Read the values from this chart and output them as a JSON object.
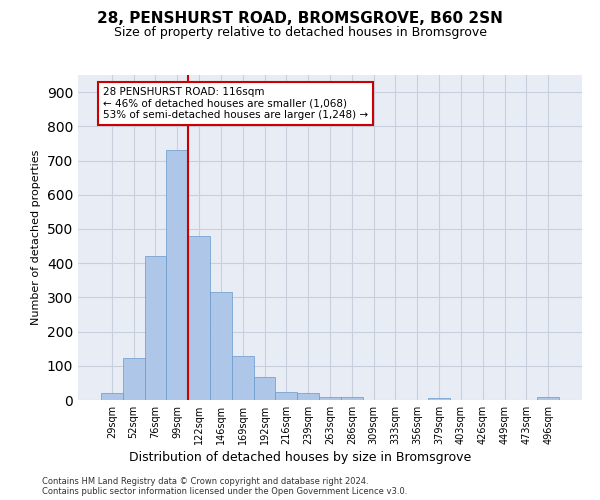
{
  "title": "28, PENSHURST ROAD, BROMSGROVE, B60 2SN",
  "subtitle": "Size of property relative to detached houses in Bromsgrove",
  "xlabel": "Distribution of detached houses by size in Bromsgrove",
  "ylabel": "Number of detached properties",
  "categories": [
    "29sqm",
    "52sqm",
    "76sqm",
    "99sqm",
    "122sqm",
    "146sqm",
    "169sqm",
    "192sqm",
    "216sqm",
    "239sqm",
    "263sqm",
    "286sqm",
    "309sqm",
    "333sqm",
    "356sqm",
    "379sqm",
    "403sqm",
    "426sqm",
    "449sqm",
    "473sqm",
    "496sqm"
  ],
  "values": [
    20,
    122,
    420,
    730,
    480,
    315,
    130,
    67,
    22,
    20,
    10,
    8,
    0,
    0,
    0,
    5,
    0,
    0,
    0,
    0,
    8
  ],
  "bar_color": "#aec6e8",
  "bar_edge_color": "#6699cc",
  "property_line_x": 3.5,
  "property_line_color": "#cc0000",
  "annotation_line1": "28 PENSHURST ROAD: 116sqm",
  "annotation_line2": "← 46% of detached houses are smaller (1,068)",
  "annotation_line3": "53% of semi-detached houses are larger (1,248) →",
  "annotation_box_edge_color": "#cc0000",
  "ylim_max": 950,
  "yticks": [
    0,
    100,
    200,
    300,
    400,
    500,
    600,
    700,
    800,
    900
  ],
  "grid_color": "#c8d0de",
  "plot_bg_color": "#e8edf5",
  "footer_line1": "Contains HM Land Registry data © Crown copyright and database right 2024.",
  "footer_line2": "Contains public sector information licensed under the Open Government Licence v3.0."
}
